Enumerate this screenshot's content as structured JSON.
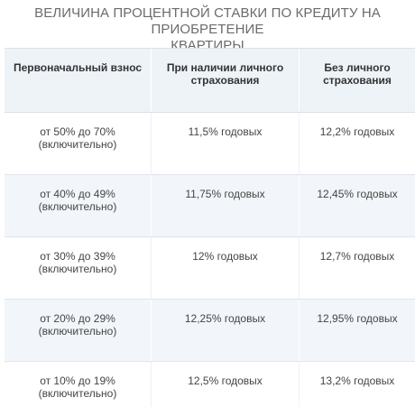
{
  "title": {
    "line1": "ВЕЛИЧИНА ПРОЦЕНТНОЙ СТАВКИ ПО КРЕДИТУ НА ПРИОБРЕТЕНИЕ",
    "line2": "КВАРТИРЫ"
  },
  "table": {
    "headers": [
      {
        "line1": "Первоначальный взнос",
        "line2": ""
      },
      {
        "line1": "При наличии личного",
        "line2": "страхования"
      },
      {
        "line1": "Без личного",
        "line2": "страхования"
      }
    ],
    "rows": [
      {
        "range": "от 50% до 70%",
        "note": "(включительно)",
        "with_insurance": "11,5% годовых",
        "without_insurance": "12,2% годовых"
      },
      {
        "range": "от 40% до 49%",
        "note": "(включительно)",
        "with_insurance": "11,75% годовых",
        "without_insurance": "12,45% годовых"
      },
      {
        "range": "от 30% до 39%",
        "note": "(включительно)",
        "with_insurance": "12% годовых",
        "without_insurance": "12,7% годовых"
      },
      {
        "range": "от 20% до 29%",
        "note": "(включительно)",
        "with_insurance": "12,25% годовых",
        "without_insurance": "12,95% годовых"
      },
      {
        "range": "от 10% до 19%",
        "note": "(включительно)",
        "with_insurance": "12,5% годовых",
        "without_insurance": "13,2% годовых"
      }
    ]
  }
}
